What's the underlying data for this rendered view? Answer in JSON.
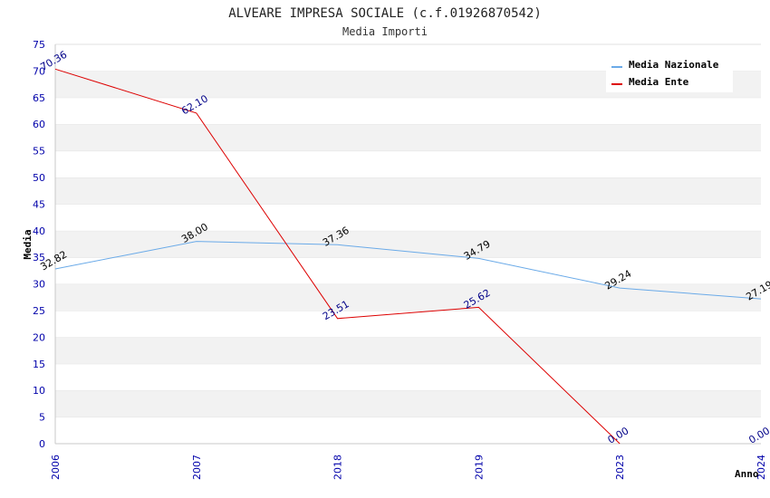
{
  "chart_data": {
    "type": "line",
    "title": "ALVEARE IMPRESA SOCIALE (c.f.01926870542)",
    "subtitle": "Media Importi",
    "xlabel": "Anno",
    "ylabel": "Media",
    "categories": [
      "2006",
      "2007",
      "2018",
      "2019",
      "2023",
      "2024"
    ],
    "ylim": [
      0,
      75
    ],
    "yticks": [
      0,
      5,
      10,
      15,
      20,
      25,
      30,
      35,
      40,
      45,
      50,
      55,
      60,
      65,
      70,
      75
    ],
    "grid": "horizontal bands",
    "legend_position": "top-right",
    "series": [
      {
        "name": "Media Nazionale",
        "color": "#6aaae8",
        "label_color": "#000000",
        "values": [
          32.82,
          38.0,
          37.36,
          34.79,
          29.24,
          27.19
        ],
        "labels": [
          "32.82",
          "38.00",
          "37.36",
          "34.79",
          "29.24",
          "27.19"
        ]
      },
      {
        "name": "Media Ente",
        "color": "#dd0000",
        "label_color": "#000088",
        "values": [
          70.36,
          62.1,
          23.51,
          25.62,
          0.0,
          null
        ],
        "labels": [
          "70.36",
          "62.10",
          "23.51",
          "25.62",
          "0.00",
          "0.00"
        ],
        "label_values": [
          70.36,
          62.1,
          23.51,
          25.62,
          0.0,
          0.0
        ]
      }
    ]
  }
}
